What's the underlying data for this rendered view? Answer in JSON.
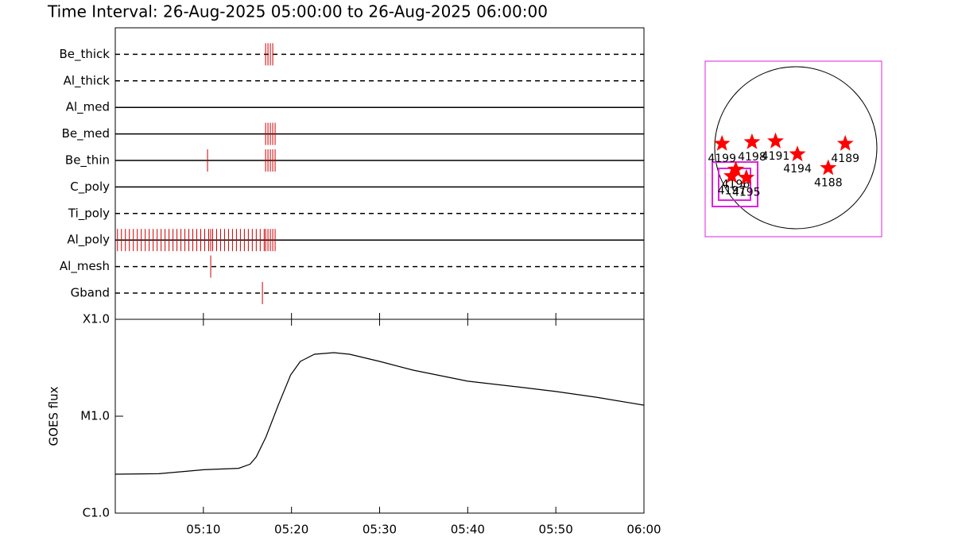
{
  "title": "Time Interval: 26-Aug-2025 05:00:00 to 26-Aug-2025 06:00:00",
  "chart_data": [
    {
      "type": "timeline",
      "xlim": [
        0,
        60
      ],
      "rows": [
        {
          "name": "Be_thick",
          "style": "dashed",
          "times": [
            17.06,
            17.33,
            17.6,
            17.87
          ]
        },
        {
          "name": "Al_thick",
          "style": "dashed",
          "times": []
        },
        {
          "name": "Al_med",
          "style": "solid",
          "times": []
        },
        {
          "name": "Be_med",
          "style": "solid",
          "times": [
            17.06,
            17.33,
            17.6,
            17.87,
            18.14
          ]
        },
        {
          "name": "Be_thin",
          "style": "solid",
          "times": [
            10.47,
            17.06,
            17.33,
            17.6,
            17.87,
            18.14
          ]
        },
        {
          "name": "C_poly",
          "style": "solid",
          "times": []
        },
        {
          "name": "Ti_poly",
          "style": "dashed",
          "times": []
        },
        {
          "name": "Al_poly",
          "style": "solid",
          "times": [
            0.25,
            0.7,
            1.15,
            1.6,
            2.05,
            2.5,
            2.95,
            3.4,
            3.85,
            4.3,
            4.75,
            5.2,
            5.65,
            6.1,
            6.55,
            7.0,
            7.45,
            7.9,
            8.35,
            8.8,
            9.25,
            9.7,
            10.15,
            10.6,
            10.83,
            11.05,
            11.5,
            11.95,
            12.4,
            12.85,
            13.3,
            13.75,
            14.2,
            14.65,
            15.1,
            15.55,
            16.0,
            16.45,
            16.9,
            17.06,
            17.33,
            17.6,
            17.87,
            18.14
          ]
        },
        {
          "name": "Al_mesh",
          "style": "dashed",
          "times": [
            10.83
          ]
        },
        {
          "name": "Gband",
          "style": "dashed",
          "times": [
            16.7
          ]
        }
      ],
      "color": "#cc0000"
    },
    {
      "type": "line",
      "y_label": "GOES flux",
      "log_scale": true,
      "color": "#000000",
      "x": [
        0,
        4.96,
        10,
        14,
        15.3,
        16,
        17.1,
        18.5,
        19.9,
        21,
        22.6,
        24.8,
        26.6,
        30,
        33.8,
        40,
        45.6,
        50,
        54.6,
        60
      ],
      "values": [
        2.52e-06,
        2.55e-06,
        2.8e-06,
        2.9e-06,
        3.2e-06,
        3.8e-06,
        6.1e-06,
        1.3e-05,
        2.67e-05,
        3.68e-05,
        4.36e-05,
        4.53e-05,
        4.36e-05,
        3.68e-05,
        2.99e-05,
        2.3e-05,
        2.01e-05,
        1.8e-05,
        1.57e-05,
        1.3e-05
      ],
      "xlim": [
        0,
        60
      ],
      "xticks": [
        {
          "value": 10,
          "label": "05:10"
        },
        {
          "value": 20,
          "label": "05:20"
        },
        {
          "value": 30,
          "label": "05:30"
        },
        {
          "value": 40,
          "label": "05:40"
        },
        {
          "value": 50,
          "label": "05:50"
        },
        {
          "value": 60,
          "label": "06:00"
        }
      ],
      "ylim": [
        1e-06,
        0.0001
      ],
      "yticks": [
        {
          "value": 1e-06,
          "label": "C1.0"
        },
        {
          "value": 1e-05,
          "label": "M1.0"
        },
        {
          "value": 0.0001,
          "label": "X1.0"
        }
      ]
    },
    {
      "type": "map",
      "color": "#ff0000",
      "xlim": [
        -1.1,
        1.1
      ],
      "ylim": [
        -1.1,
        1.1
      ],
      "regions": [
        {
          "label": "4199",
          "x": -0.91,
          "y": 0.05
        },
        {
          "label": "4198",
          "x": -0.54,
          "y": 0.07
        },
        {
          "label": "4191",
          "x": -0.25,
          "y": 0.08
        },
        {
          "label": "4194",
          "x": 0.02,
          "y": -0.08
        },
        {
          "label": "4189",
          "x": 0.61,
          "y": 0.05
        },
        {
          "label": "4188",
          "x": 0.4,
          "y": -0.25
        },
        {
          "label": "4196",
          "x": -0.74,
          "y": -0.27
        },
        {
          "label": "4197",
          "x": -0.79,
          "y": -0.35
        },
        {
          "label": "4195",
          "x": -0.61,
          "y": -0.37
        }
      ]
    }
  ]
}
